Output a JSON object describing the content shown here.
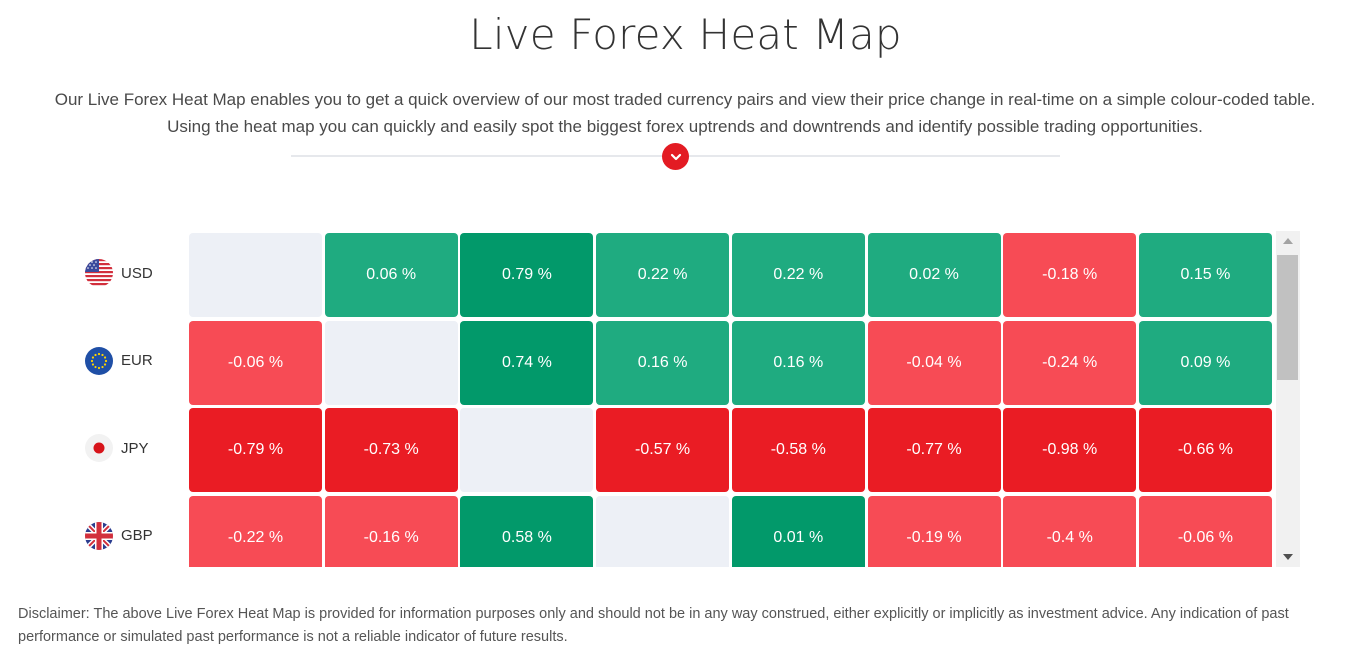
{
  "page": {
    "title": "Live Forex Heat Map",
    "intro": "Our Live Forex Heat Map enables you to get a quick overview of our most traded currency pairs and view their price change in real-time on a simple colour-coded table. Using the heat map you can quickly and easily spot the biggest forex uptrends and downtrends and identify possible trading opportunities.",
    "disclaimer": "Disclaimer: The above Live Forex Heat Map is provided for information purposes only and should not be in any way construed, either explicitly or implicitly as investment advice. Any indication of past performance or simulated past performance is not a reliable indicator of future results.",
    "expand_icon": "chevron-down-icon",
    "accent_color": "#e31b23"
  },
  "colors": {
    "strong_up": "#02996a",
    "up": "#1fab80",
    "down": "#f74b55",
    "strong_down": "#ea1c24",
    "empty": "#edf0f6"
  },
  "heatmap": {
    "rows": [
      {
        "code": "USD",
        "flag": "us-flag-icon",
        "cells": [
          {
            "text": "",
            "tone": "empty"
          },
          {
            "text": "0.06 %",
            "tone": "up"
          },
          {
            "text": "0.79 %",
            "tone": "strong_up"
          },
          {
            "text": "0.22 %",
            "tone": "up"
          },
          {
            "text": "0.22 %",
            "tone": "up"
          },
          {
            "text": "0.02 %",
            "tone": "up"
          },
          {
            "text": "-0.18 %",
            "tone": "down"
          },
          {
            "text": "0.15 %",
            "tone": "up"
          }
        ]
      },
      {
        "code": "EUR",
        "flag": "eu-flag-icon",
        "cells": [
          {
            "text": "-0.06 %",
            "tone": "down"
          },
          {
            "text": "",
            "tone": "empty"
          },
          {
            "text": "0.74 %",
            "tone": "strong_up"
          },
          {
            "text": "0.16 %",
            "tone": "up"
          },
          {
            "text": "0.16 %",
            "tone": "up"
          },
          {
            "text": "-0.04 %",
            "tone": "down"
          },
          {
            "text": "-0.24 %",
            "tone": "down"
          },
          {
            "text": "0.09 %",
            "tone": "up"
          }
        ]
      },
      {
        "code": "JPY",
        "flag": "jp-flag-icon",
        "cells": [
          {
            "text": "-0.79 %",
            "tone": "strong_down"
          },
          {
            "text": "-0.73 %",
            "tone": "strong_down"
          },
          {
            "text": "",
            "tone": "empty"
          },
          {
            "text": "-0.57 %",
            "tone": "strong_down"
          },
          {
            "text": "-0.58 %",
            "tone": "strong_down"
          },
          {
            "text": "-0.77 %",
            "tone": "strong_down"
          },
          {
            "text": "-0.98 %",
            "tone": "strong_down"
          },
          {
            "text": "-0.66 %",
            "tone": "strong_down"
          }
        ]
      },
      {
        "code": "GBP",
        "flag": "gb-flag-icon",
        "cells": [
          {
            "text": "-0.22 %",
            "tone": "down"
          },
          {
            "text": "-0.16 %",
            "tone": "down"
          },
          {
            "text": "0.58 %",
            "tone": "strong_up"
          },
          {
            "text": "",
            "tone": "empty"
          },
          {
            "text": "0.01 %",
            "tone": "strong_up"
          },
          {
            "text": "-0.19 %",
            "tone": "down"
          },
          {
            "text": "-0.4 %",
            "tone": "down"
          },
          {
            "text": "-0.06 %",
            "tone": "down"
          }
        ]
      }
    ]
  }
}
